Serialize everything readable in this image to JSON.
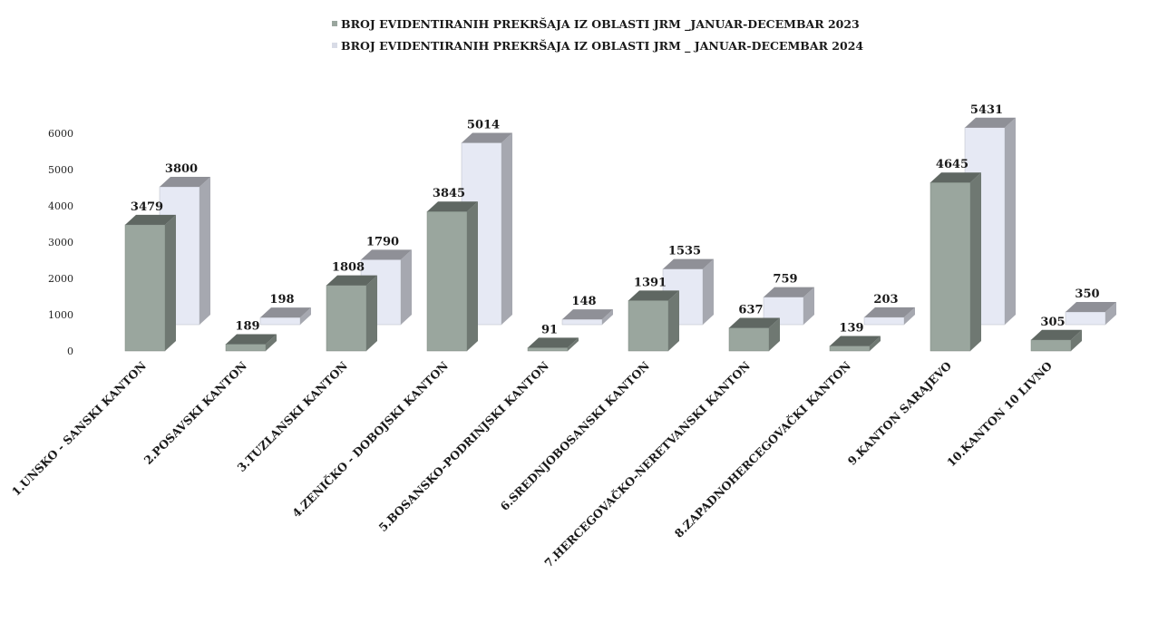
{
  "chart_data": {
    "type": "bar",
    "categories": [
      "1.UNSKO - SANSKI KANTON",
      "2.POSAVSKI KANTON",
      "3.TUZLANSKI KANTON",
      "4.ZENIČKO - DOBOJSKI KANTON",
      "5.BOSANSKO-PODRINJSKI KANTON",
      "6.SREDNJOBOSANSKI KANTON",
      "7.HERCEGOVAČKO-NERETVANSKI KANTON",
      "8.ZAPADNOHERCEGOVAČKI KANTON",
      "9.KANTON SARAJEVO",
      "10.KANTON 10 LIVNO"
    ],
    "series": [
      {
        "name": "BROJ EVIDENTIRANIH  PREKRŠAJA  IZ OBLASTI  JRM  _JANUAR-DECEMBAR 2023",
        "values": [
          3479,
          189,
          1808,
          3845,
          91,
          1391,
          637,
          139,
          4645,
          305
        ],
        "color": "#9aa69e"
      },
      {
        "name": "BROJ EVIDENTIRANIH  PREKRŠAJA  IZ OBLASTI  JRM  _ JANUAR-DECEMBAR 2024",
        "values": [
          3800,
          198,
          1790,
          5014,
          148,
          1535,
          759,
          203,
          5431,
          350
        ],
        "color": "#e6e9f4"
      }
    ],
    "yticks": [
      0,
      1000,
      2000,
      3000,
      4000,
      5000,
      6000
    ],
    "ylim": [
      0,
      6000
    ],
    "data_labels": true,
    "legend_position": "top",
    "grid": false,
    "style": "3d-column"
  }
}
